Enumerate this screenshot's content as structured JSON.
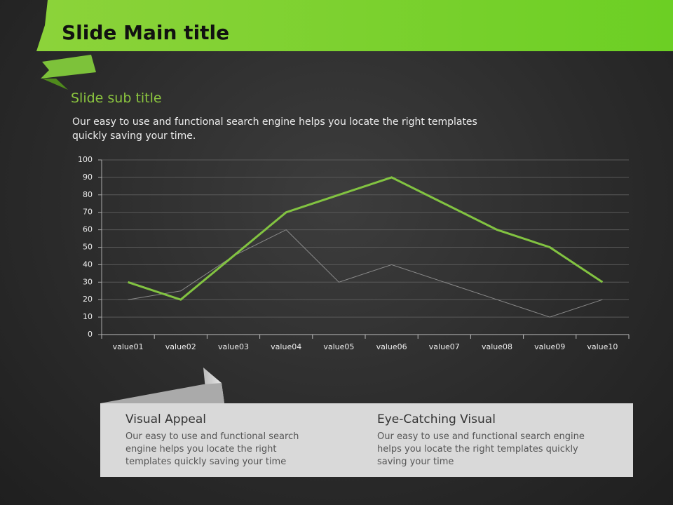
{
  "slide": {
    "title": "Slide Main title",
    "subtitle": "Slide sub title",
    "description": "Our easy to use and functional search engine helps you locate the right templates quickly saving your time.",
    "boxes": [
      {
        "heading": "Visual Appeal",
        "text": "Our easy to use and functional search engine helps you locate the right templates quickly saving your time"
      },
      {
        "heading": "Eye-Catching Visual",
        "text": "Our easy to use and functional search engine helps you locate the right templates quickly saving your time"
      }
    ]
  },
  "chart_data": {
    "type": "line",
    "categories": [
      "value01",
      "value02",
      "value03",
      "value04",
      "value05",
      "value06",
      "value07",
      "value08",
      "value09",
      "value10"
    ],
    "series": [
      {
        "color": "#8a8a8a",
        "values": [
          20,
          25,
          45,
          60,
          30,
          40,
          30,
          20,
          10,
          20
        ]
      },
      {
        "color": "#82c341",
        "values": [
          30,
          20,
          45,
          70,
          80,
          90,
          75,
          60,
          50,
          30
        ]
      }
    ],
    "ylim": [
      0,
      100
    ],
    "yticks": [
      0,
      10,
      20,
      30,
      40,
      50,
      60,
      70,
      80,
      90,
      100
    ],
    "grid": true
  }
}
